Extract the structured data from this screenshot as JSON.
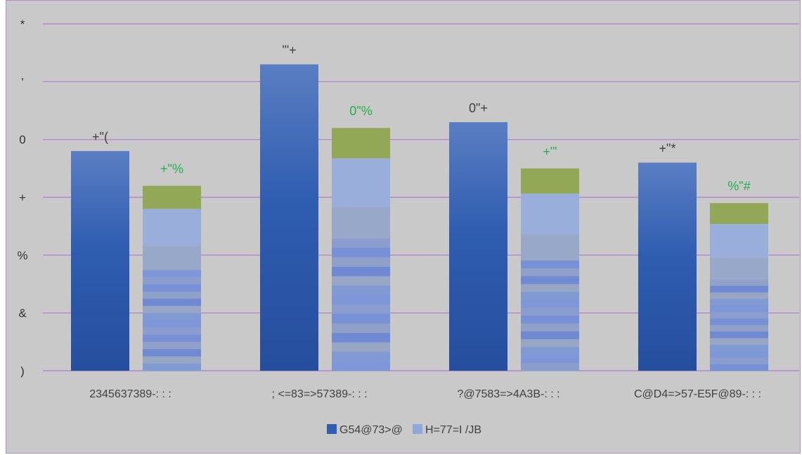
{
  "chart_data": {
    "type": "bar",
    "title": "",
    "xlabel": "",
    "ylabel": "",
    "y_tick_labels": [
      ")",
      "&",
      "%",
      "+",
      "0",
      "'",
      "*"
    ],
    "ylim": [
      0,
      6
    ],
    "grid": true,
    "legend_position": "bottom",
    "categories": [
      "2345637389-: : :",
      "; <=83=>57389-: : :",
      "?@7583=>4A3B-: : :",
      "C@D4=>57-E5F@89-: : :"
    ],
    "series": [
      {
        "name": "G54@73>@",
        "values": [
          3.8,
          5.3,
          4.3,
          3.6
        ],
        "data_labels": [
          "+\"(",
          "'\"+",
          "0\"+",
          "+\"*"
        ],
        "color": "#2f5db0"
      },
      {
        "name": "H=77=I /JB",
        "values": [
          3.2,
          4.2,
          3.5,
          2.9
        ],
        "data_labels": [
          "+\"%",
          "0\"%",
          "+\"'",
          "%\"#"
        ],
        "color": "#8fa8dc",
        "cap_color": "#93a857"
      }
    ]
  }
}
